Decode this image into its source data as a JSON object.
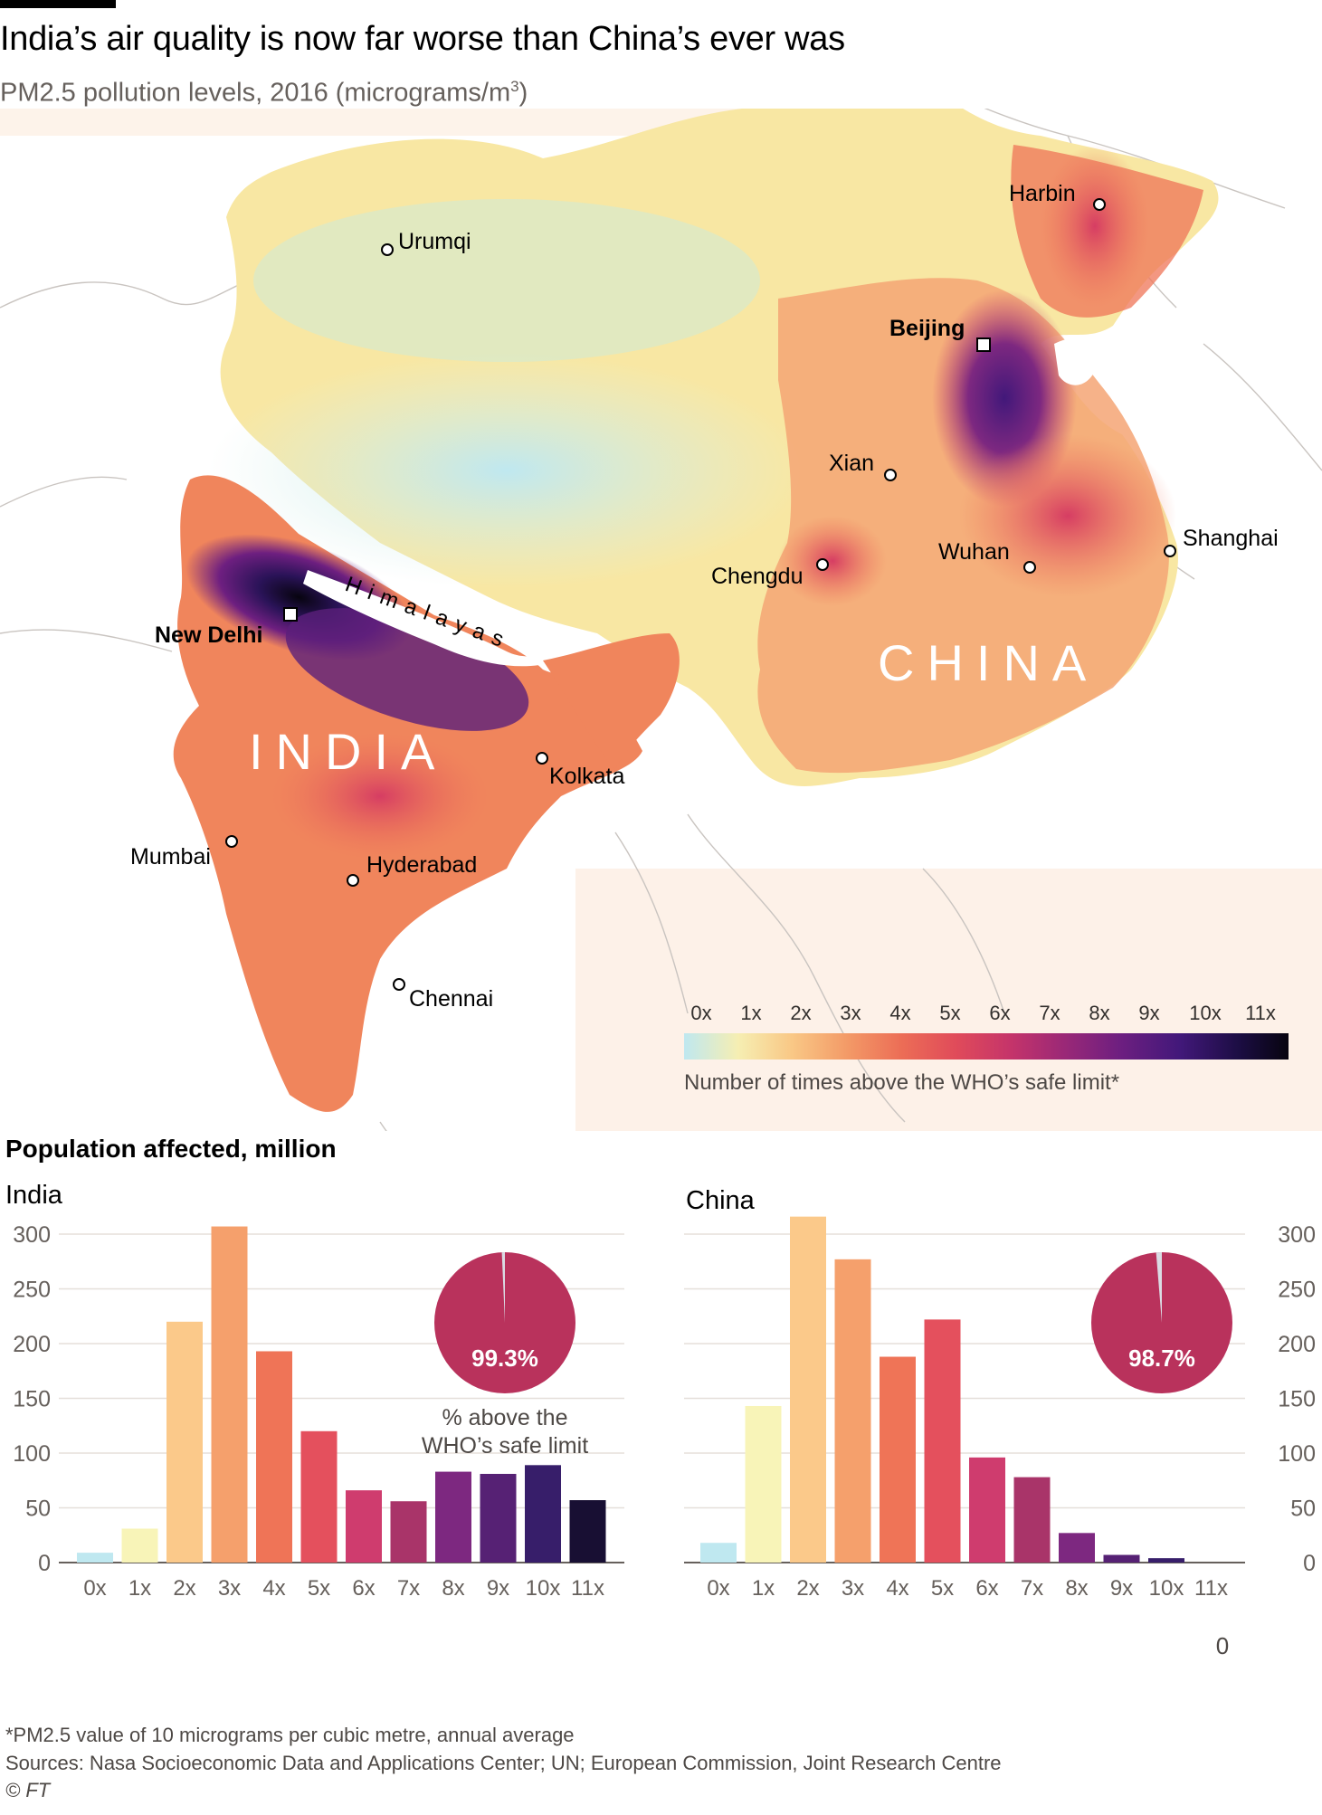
{
  "title": "India’s air quality is now far worse than China’s ever was",
  "subtitle_main": "PM2.5 pollution levels, 2016 (micrograms/m",
  "subtitle_sup": "3",
  "subtitle_end": ")",
  "map": {
    "countries": [
      "INDIA",
      "CHINA"
    ],
    "feature_label": "Himalayas",
    "cities": [
      {
        "name": "Urumqi",
        "capital": false
      },
      {
        "name": "Harbin",
        "capital": false
      },
      {
        "name": "Beijing",
        "capital": true
      },
      {
        "name": "Xian",
        "capital": false
      },
      {
        "name": "Shanghai",
        "capital": false
      },
      {
        "name": "Wuhan",
        "capital": false
      },
      {
        "name": "Chengdu",
        "capital": false
      },
      {
        "name": "New Delhi",
        "capital": true
      },
      {
        "name": "Kolkata",
        "capital": false
      },
      {
        "name": "Mumbai",
        "capital": false
      },
      {
        "name": "Hyderabad",
        "capital": false
      },
      {
        "name": "Chennai",
        "capital": false
      }
    ]
  },
  "legend": {
    "ticks": [
      "0x",
      "1x",
      "2x",
      "3x",
      "4x",
      "5x",
      "6x",
      "7x",
      "8x",
      "9x",
      "10x",
      "11x"
    ],
    "caption": "Number of times above the WHO’s safe limit*"
  },
  "population_heading": "Population affected, million",
  "chart_data": [
    {
      "type": "bar",
      "title": "India",
      "categories": [
        "0x",
        "1x",
        "2x",
        "3x",
        "4x",
        "5x",
        "6x",
        "7x",
        "8x",
        "9x",
        "10x",
        "11x"
      ],
      "values": [
        9,
        31,
        220,
        307,
        193,
        120,
        66,
        56,
        83,
        81,
        89,
        57
      ],
      "yticks": [
        "0",
        "50",
        "100",
        "150",
        "200",
        "250",
        "300"
      ],
      "ylim": [
        0,
        300
      ],
      "pie_value": "99.3%",
      "pie_caption_1": "% above the",
      "pie_caption_2": "WHO’s safe limit"
    },
    {
      "type": "bar",
      "title": "China",
      "categories": [
        "0x",
        "1x",
        "2x",
        "3x",
        "4x",
        "5x",
        "6x",
        "7x",
        "8x",
        "9x",
        "10x",
        "11x"
      ],
      "values": [
        18,
        143,
        316,
        277,
        188,
        222,
        96,
        78,
        27,
        7,
        4,
        0
      ],
      "yticks": [
        "0",
        "50",
        "100",
        "150",
        "200",
        "250",
        "300"
      ],
      "ylim": [
        0,
        300
      ],
      "pie_value": "98.7%",
      "zero_label": "0"
    }
  ],
  "colors": [
    "#bfe8f0",
    "#f8f4b8",
    "#fbc98a",
    "#f5a06c",
    "#ef7457",
    "#e4505d",
    "#cf3c6e",
    "#a93469",
    "#7d2880",
    "#562174",
    "#371e6a",
    "#180f33"
  ],
  "pie_color": "#b9325c",
  "footnote": "*PM2.5 value of 10 micrograms per cubic metre, annual average",
  "sources": "Sources: Nasa Socioeconomic Data and Applications Center; UN; European Commission, Joint Research Centre",
  "credit": "© FT"
}
